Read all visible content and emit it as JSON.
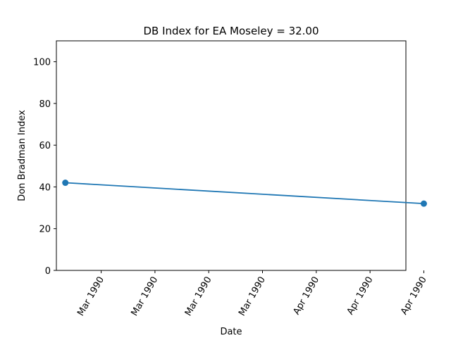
{
  "chart_data": {
    "type": "line",
    "title": "DB Index for EA Moseley = 32.00",
    "xlabel": "Date",
    "ylabel": "Don Bradman Index",
    "ylim": [
      0,
      110
    ],
    "yticks": [
      0,
      20,
      40,
      60,
      80,
      100
    ],
    "xlim": [
      "1990-02-24",
      "1990-04-04"
    ],
    "xticks": [
      {
        "date": "1990-03-01",
        "label": "Mar 1990"
      },
      {
        "date": "1990-03-07",
        "label": "Mar 1990"
      },
      {
        "date": "1990-03-13",
        "label": "Mar 1990"
      },
      {
        "date": "1990-03-19",
        "label": "Mar 1990"
      },
      {
        "date": "1990-03-25",
        "label": "Apr 1990"
      },
      {
        "date": "1990-03-31",
        "label": "Apr 1990"
      },
      {
        "date": "1990-04-06",
        "label": "Apr 1990"
      }
    ],
    "series": [
      {
        "color": "#1f77b4",
        "points": [
          {
            "x": "1990-02-25",
            "y": 42
          },
          {
            "x": "1990-04-06",
            "y": 32
          }
        ]
      }
    ],
    "grid": false,
    "legend": null
  }
}
